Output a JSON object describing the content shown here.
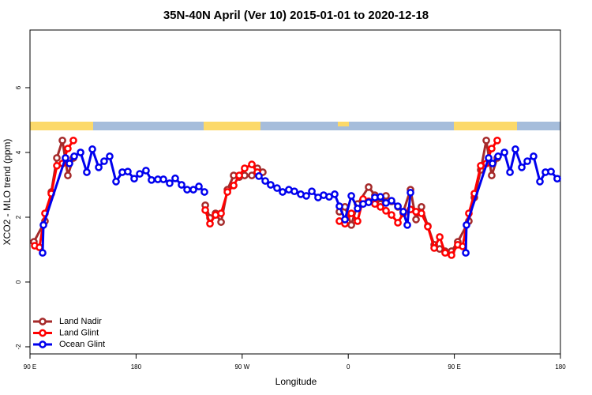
{
  "chart_data": {
    "type": "line",
    "title": "35N-40N April (Ver 10)   2015-01-01 to 2020-12-18",
    "x_label": "Longitude",
    "y_label": "XCO2 - MLO trend (ppm)",
    "xlim": [
      90,
      540
    ],
    "ylim": [
      -2.22,
      7.78
    ],
    "xticks": [
      {
        "value": 90,
        "label": "90 E"
      },
      {
        "value": 180,
        "label": "180"
      },
      {
        "value": 270,
        "label": "90 W"
      },
      {
        "value": 360,
        "label": "0"
      },
      {
        "value": 450,
        "label": "90 E"
      },
      {
        "value": 540,
        "label": "180"
      }
    ],
    "yticks": [
      -2,
      0,
      2,
      4,
      6
    ],
    "legend": "bottom-left",
    "series": [
      {
        "name": "Land Nadir",
        "color": "#a52a2a",
        "x": [
          93.3,
          102.7,
          108.1,
          112.8,
          117.5,
          122.1,
          126.8,
          null,
          238.7,
          242.7,
          247.4,
          252.1,
          257.5,
          262.8,
          267.5,
          272.1,
          278.2,
          282.9,
          287.5,
          null,
          352.5,
          357.2,
          362.6,
          367.9,
          377.3,
          382.6,
          387.3,
          392.0,
          396.7,
          402.1,
          406.7,
          412.8,
          417.5,
          422.1,
          427.5,
          432.9,
          437.6,
          442.2,
          447.6,
          452.9,
          462.3,
          467.0,
          472.4,
          477.1,
          481.7,
          486.4
        ],
        "values": [
          1.24,
          1.88,
          2.78,
          3.83,
          4.37,
          3.29,
          3.83,
          null,
          2.37,
          1.98,
          2.12,
          1.85,
          2.85,
          3.29,
          3.24,
          3.29,
          3.29,
          3.51,
          3.39,
          null,
          2.17,
          2.32,
          1.76,
          2.41,
          2.93,
          2.68,
          2.41,
          2.66,
          2.49,
          2.32,
          2.17,
          2.85,
          1.93,
          2.32,
          1.73,
          1.15,
          1.02,
          0.95,
          0.95,
          1.24,
          1.88,
          2.61,
          3.46,
          4.37,
          3.29,
          3.83
        ]
      },
      {
        "name": "Land Glint",
        "color": "#ff0000",
        "x": [
          94.0,
          98.0,
          102.7,
          108.1,
          112.8,
          117.5,
          122.1,
          126.8,
          null,
          238.7,
          242.7,
          247.4,
          252.1,
          257.5,
          262.8,
          267.5,
          272.1,
          278.2,
          282.9,
          null,
          352.5,
          357.2,
          362.6,
          367.9,
          372.6,
          377.3,
          382.6,
          387.3,
          392.0,
          396.7,
          402.1,
          406.7,
          412.8,
          417.5,
          422.1,
          427.5,
          432.9,
          437.6,
          442.2,
          447.6,
          452.9,
          457.0,
          462.3,
          467.0,
          472.4,
          477.1,
          481.7,
          486.4
        ],
        "values": [
          1.12,
          1.07,
          2.12,
          2.73,
          3.59,
          3.66,
          4.12,
          4.37,
          null,
          2.22,
          1.8,
          2.07,
          2.12,
          2.78,
          2.98,
          3.29,
          3.51,
          3.63,
          3.39,
          null,
          1.88,
          1.8,
          2.12,
          1.88,
          2.56,
          2.49,
          2.41,
          2.32,
          2.2,
          2.07,
          1.83,
          2.12,
          2.24,
          2.17,
          2.12,
          1.71,
          1.05,
          1.39,
          0.9,
          0.83,
          1.15,
          1.1,
          2.12,
          2.73,
          3.59,
          3.66,
          4.12,
          4.37
        ]
      },
      {
        "name": "Ocean Glint",
        "color": "#0000ee",
        "x": [
          100.7,
          101.4,
          120.1,
          123.5,
          127.5,
          132.9,
          138.2,
          142.9,
          148.3,
          152.9,
          157.6,
          163.0,
          168.3,
          173.0,
          178.4,
          183.1,
          188.4,
          193.1,
          198.5,
          203.2,
          208.5,
          213.2,
          218.6,
          223.3,
          228.6,
          233.3,
          238.0,
          null,
          284.2,
          289.6,
          294.2,
          299.6,
          304.3,
          309.6,
          314.3,
          319.7,
          324.4,
          329.1,
          334.4,
          339.1,
          343.8,
          348.5,
          352.5,
          357.2,
          362.6,
          367.9,
          372.6,
          377.3,
          382.6,
          387.3,
          392.0,
          396.7,
          402.1,
          406.7,
          410.1,
          412.8,
          null,
          459.7,
          460.3,
          479.1,
          482.4,
          487.1,
          492.5,
          497.2,
          501.8,
          507.2,
          511.9,
          517.2,
          522.6,
          527.3,
          532.0,
          537.3
        ],
        "values": [
          0.9,
          1.76,
          3.83,
          3.66,
          3.88,
          4.0,
          3.39,
          4.1,
          3.54,
          3.73,
          3.88,
          3.1,
          3.39,
          3.41,
          3.19,
          3.34,
          3.44,
          3.15,
          3.17,
          3.17,
          3.05,
          3.2,
          3.0,
          2.85,
          2.85,
          2.95,
          2.78,
          null,
          3.27,
          3.12,
          3.0,
          2.9,
          2.78,
          2.85,
          2.8,
          2.71,
          2.66,
          2.8,
          2.61,
          2.68,
          2.63,
          2.71,
          2.34,
          1.93,
          2.66,
          2.27,
          2.41,
          2.46,
          2.61,
          2.63,
          2.44,
          2.51,
          2.34,
          2.17,
          1.76,
          2.76,
          null,
          0.9,
          1.76,
          3.83,
          3.66,
          3.88,
          4.0,
          3.39,
          4.1,
          3.54,
          3.73,
          3.88,
          3.1,
          3.39,
          3.41,
          3.19
        ]
      }
    ]
  }
}
